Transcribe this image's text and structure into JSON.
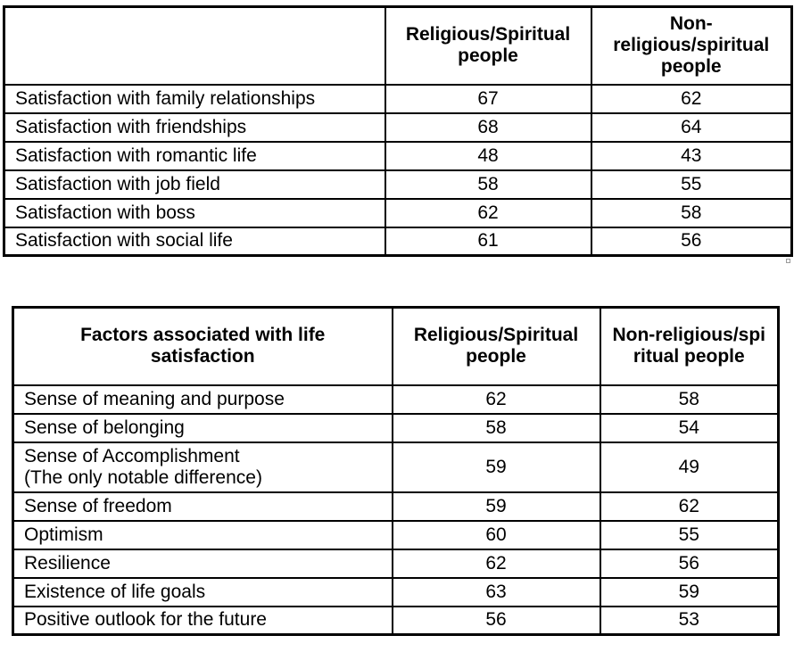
{
  "table1": {
    "headers": [
      "",
      "Religious/Spiritual people",
      "Non-religious/spiritual people"
    ],
    "rows": [
      {
        "label": "Satisfaction with family relationships",
        "religious": "67",
        "non_religious": "62"
      },
      {
        "label": "Satisfaction with friendships",
        "religious": "68",
        "non_religious": "64"
      },
      {
        "label": "Satisfaction with romantic life",
        "religious": "48",
        "non_religious": "43"
      },
      {
        "label": "Satisfaction with job field",
        "religious": "58",
        "non_religious": "55"
      },
      {
        "label": "Satisfaction with boss",
        "religious": "62",
        "non_religious": "58"
      },
      {
        "label": "Satisfaction with social life",
        "religious": "61",
        "non_religious": "56"
      }
    ]
  },
  "table2": {
    "headers": [
      "Factors associated with life satisfaction",
      "Religious/Spiritual people",
      "Non-religious/spiritual people"
    ],
    "rows": [
      {
        "label": "Sense of meaning and purpose",
        "religious": "62",
        "non_religious": "58"
      },
      {
        "label": "Sense of belonging",
        "religious": "58",
        "non_religious": "54"
      },
      {
        "label": "Sense of Accomplishment",
        "note": "(The only notable difference)",
        "religious": "59",
        "non_religious": "49"
      },
      {
        "label": "Sense of freedom",
        "religious": "59",
        "non_religious": "62"
      },
      {
        "label": "Optimism",
        "religious": "60",
        "non_religious": "55"
      },
      {
        "label": "Resilience",
        "religious": "62",
        "non_religious": "56"
      },
      {
        "label": "Existence of life goals",
        "religious": "63",
        "non_religious": "59"
      },
      {
        "label": "Positive outlook for the future",
        "religious": "56",
        "non_religious": "53"
      }
    ]
  }
}
